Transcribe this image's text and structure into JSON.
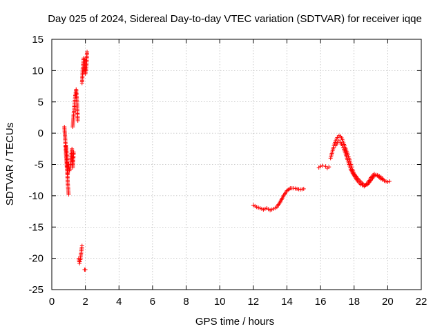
{
  "chart_data": {
    "type": "scatter",
    "title": "Day 025 of 2024, Sidereal Day-to-day VTEC variation (SDTVAR) for receiver iqqe",
    "xlabel": "GPS time / hours",
    "ylabel": "SDTVAR / TECUs",
    "xlim": [
      0,
      22
    ],
    "ylim": [
      -25,
      15
    ],
    "xticks": [
      0,
      2,
      4,
      6,
      8,
      10,
      12,
      14,
      16,
      18,
      20,
      22
    ],
    "yticks": [
      -25,
      -20,
      -15,
      -10,
      -5,
      0,
      5,
      10,
      15
    ],
    "grid": true,
    "marker": "+",
    "series_color": "#ff0000",
    "series": [
      {
        "name": "SDTVAR",
        "segments": [
          {
            "x": [
              0.75,
              0.8,
              0.85,
              0.9,
              0.95,
              1.0,
              1.05,
              1.1,
              1.15,
              1.2,
              1.25,
              1.3
            ],
            "y": [
              1.0,
              -1.0,
              -3.5,
              -5.5,
              -6.5,
              -5.0,
              -6.0,
              -5.5,
              -4.0,
              -2.5,
              -5.5,
              -3.0
            ]
          },
          {
            "x": [
              0.85,
              0.9,
              0.95,
              1.0
            ],
            "y": [
              -2.0,
              -4.0,
              -8.0,
              -9.8
            ]
          },
          {
            "x": [
              1.25,
              1.3,
              1.35,
              1.4,
              1.45,
              1.5,
              1.55
            ],
            "y": [
              1.0,
              3.0,
              4.5,
              6.0,
              7.0,
              5.0,
              2.0
            ]
          },
          {
            "x": [
              1.6,
              1.65,
              1.7,
              1.75,
              1.8
            ],
            "y": [
              -20.0,
              -20.8,
              -20.2,
              -19.0,
              -18.0
            ]
          },
          {
            "x": [
              1.8,
              1.85,
              1.9,
              1.95,
              2.0,
              2.05,
              2.1
            ],
            "y": [
              8.0,
              10.5,
              12.0,
              11.5,
              9.5,
              10.5,
              13.0
            ]
          },
          {
            "x": [
              1.95,
              2.0
            ],
            "y": [
              -21.8,
              -21.8
            ]
          },
          {
            "x": [
              12.0,
              12.2,
              12.4,
              12.6,
              12.8,
              13.0,
              13.2,
              13.4,
              13.6,
              13.8,
              14.0,
              14.2,
              14.4,
              14.6,
              14.8,
              15.0
            ],
            "y": [
              -11.5,
              -11.8,
              -12.0,
              -12.2,
              -12.0,
              -12.3,
              -12.1,
              -11.8,
              -11.0,
              -10.0,
              -9.2,
              -8.8,
              -8.8,
              -8.9,
              -9.0,
              -8.9
            ]
          },
          {
            "x": [
              15.9,
              16.0,
              16.1
            ],
            "y": [
              -5.5,
              -5.3,
              -5.2
            ]
          },
          {
            "x": [
              16.3,
              16.4,
              16.5
            ],
            "y": [
              -5.3,
              -5.6,
              -5.4
            ]
          },
          {
            "x": [
              16.6,
              16.7,
              16.8,
              16.9,
              17.0,
              17.1,
              17.2,
              17.3,
              17.4,
              17.5,
              17.6,
              17.7,
              17.8,
              17.9,
              18.0,
              18.2,
              18.4,
              18.6,
              18.8,
              19.0,
              19.2,
              19.4,
              19.6,
              19.8,
              20.0,
              20.1
            ],
            "y": [
              -4.0,
              -3.0,
              -2.0,
              -1.2,
              -0.7,
              -0.4,
              -0.5,
              -1.0,
              -1.8,
              -2.5,
              -3.2,
              -4.0,
              -5.0,
              -5.8,
              -6.5,
              -7.2,
              -7.8,
              -8.3,
              -8.2,
              -7.5,
              -6.8,
              -6.7,
              -7.0,
              -7.6,
              -7.8,
              -7.7
            ]
          },
          {
            "x": [
              16.9,
              17.0,
              17.1,
              17.2,
              17.3,
              17.4,
              17.5,
              17.6,
              17.7,
              17.8,
              18.0,
              18.2,
              18.4,
              18.6,
              18.8,
              19.0,
              19.2,
              19.4,
              19.6,
              19.8
            ],
            "y": [
              -2.0,
              -1.5,
              -1.2,
              -1.5,
              -2.0,
              -2.6,
              -3.3,
              -4.2,
              -5.0,
              -5.8,
              -6.8,
              -7.6,
              -8.2,
              -8.5,
              -8.0,
              -7.1,
              -6.5,
              -6.8,
              -7.3,
              -7.6
            ]
          }
        ]
      }
    ]
  }
}
